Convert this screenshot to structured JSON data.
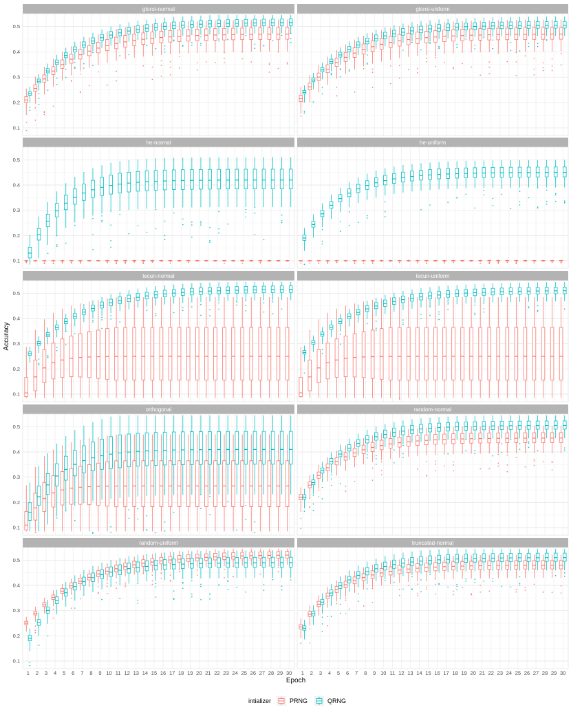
{
  "chart_data": {
    "type": "box",
    "xlabel": "Epoch",
    "ylabel": "Accuracy",
    "x_ticks": [
      1,
      2,
      3,
      4,
      5,
      6,
      7,
      8,
      9,
      10,
      11,
      12,
      13,
      14,
      15,
      16,
      17,
      18,
      19,
      20,
      21,
      22,
      23,
      24,
      25,
      26,
      27,
      28,
      29,
      30
    ],
    "y_ticks": [
      0.1,
      0.2,
      0.3,
      0.4,
      0.5
    ],
    "ylim": [
      0.07,
      0.55
    ],
    "grid": true,
    "legend": {
      "title": "intializer",
      "position": "bottom",
      "entries": [
        {
          "name": "PRNG",
          "color": "#F8766D"
        },
        {
          "name": "QRNG",
          "color": "#00BFC4"
        }
      ]
    },
    "panels": [
      {
        "title": "glorot-normal",
        "series": [
          {
            "name": "PRNG",
            "start": 0.21,
            "end": 0.47,
            "k": 0.18,
            "spread": 0.035,
            "whisker": 0.08
          },
          {
            "name": "QRNG",
            "start": 0.235,
            "end": 0.515,
            "k": 0.18,
            "spread": 0.02,
            "whisker": 0.05
          }
        ]
      },
      {
        "title": "glorot-uniform",
        "series": [
          {
            "name": "PRNG",
            "start": 0.215,
            "end": 0.47,
            "k": 0.17,
            "spread": 0.035,
            "whisker": 0.08
          },
          {
            "name": "QRNG",
            "start": 0.24,
            "end": 0.505,
            "k": 0.17,
            "spread": 0.02,
            "whisker": 0.05
          }
        ]
      },
      {
        "title": "he-normal",
        "series": [
          {
            "name": "PRNG",
            "start": 0.1,
            "end": 0.1,
            "k": 0.1,
            "spread": 0.002,
            "whisker": 0.006
          },
          {
            "name": "QRNG",
            "start": 0.13,
            "end": 0.42,
            "k": 0.12,
            "spread": 0.06,
            "whisker": 0.12
          }
        ]
      },
      {
        "title": "he-uniform",
        "series": [
          {
            "name": "PRNG",
            "start": 0.1,
            "end": 0.1,
            "k": 0.1,
            "spread": 0.002,
            "whisker": 0.006
          },
          {
            "name": "QRNG",
            "start": 0.19,
            "end": 0.45,
            "k": 0.15,
            "spread": 0.03,
            "whisker": 0.07
          }
        ]
      },
      {
        "title": "lecun-normal",
        "series": [
          {
            "name": "PRNG",
            "start": 0.105,
            "end": 0.25,
            "k": 0.06,
            "spread": 0.16,
            "whisker": 0.3
          },
          {
            "name": "QRNG",
            "start": 0.26,
            "end": 0.515,
            "k": 0.2,
            "spread": 0.02,
            "whisker": 0.05
          }
        ]
      },
      {
        "title": "lecun-uniform",
        "series": [
          {
            "name": "PRNG",
            "start": 0.105,
            "end": 0.25,
            "k": 0.06,
            "spread": 0.16,
            "whisker": 0.3
          },
          {
            "name": "QRNG",
            "start": 0.265,
            "end": 0.51,
            "k": 0.2,
            "spread": 0.02,
            "whisker": 0.05
          }
        ]
      },
      {
        "title": "orthogonal",
        "series": [
          {
            "name": "PRNG",
            "start": 0.11,
            "end": 0.265,
            "k": 0.06,
            "spread": 0.14,
            "whisker": 0.26
          },
          {
            "name": "QRNG",
            "start": 0.16,
            "end": 0.41,
            "k": 0.12,
            "spread": 0.1,
            "whisker": 0.2
          }
        ]
      },
      {
        "title": "random-normal",
        "series": [
          {
            "name": "PRNG",
            "start": 0.22,
            "end": 0.455,
            "k": 0.15,
            "spread": 0.03,
            "whisker": 0.07
          },
          {
            "name": "QRNG",
            "start": 0.22,
            "end": 0.505,
            "k": 0.15,
            "spread": 0.025,
            "whisker": 0.06
          }
        ]
      },
      {
        "title": "random-uniform",
        "series": [
          {
            "name": "PRNG",
            "start": 0.25,
            "end": 0.52,
            "k": 0.22,
            "spread": 0.02,
            "whisker": 0.045
          },
          {
            "name": "QRNG",
            "start": 0.19,
            "end": 0.49,
            "k": 0.15,
            "spread": 0.03,
            "whisker": 0.07
          }
        ]
      },
      {
        "title": "truncated-normal",
        "series": [
          {
            "name": "PRNG",
            "start": 0.235,
            "end": 0.48,
            "k": 0.15,
            "spread": 0.025,
            "whisker": 0.06
          },
          {
            "name": "QRNG",
            "start": 0.23,
            "end": 0.51,
            "k": 0.15,
            "spread": 0.025,
            "whisker": 0.06
          }
        ]
      }
    ]
  }
}
